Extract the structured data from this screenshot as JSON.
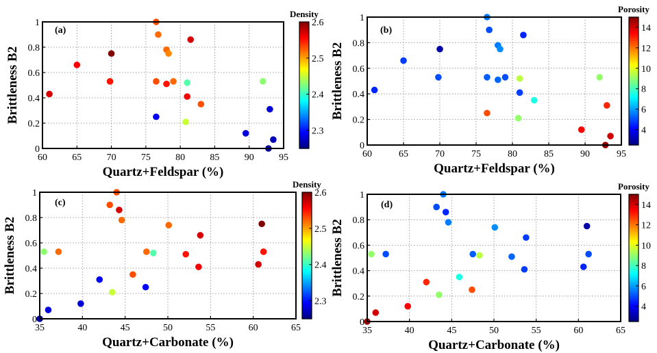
{
  "chart_data": [
    {
      "type": "scatter",
      "panel_label": "(a)",
      "xlabel": "Quartz+Feldspar (%)",
      "ylabel": "Brittleness B2",
      "xlim": [
        60,
        95
      ],
      "ylim": [
        0,
        1
      ],
      "xticks": [
        60,
        65,
        70,
        75,
        80,
        85,
        90,
        95
      ],
      "yticks": [
        0,
        0.2,
        0.4,
        0.6,
        0.8,
        1
      ],
      "grid": true,
      "colorbar": {
        "title": "Density",
        "range": [
          2.25,
          2.6
        ],
        "ticks": [
          2.3,
          2.4,
          2.5,
          2.6
        ]
      },
      "points": [
        {
          "x": 61.0,
          "y": 0.43,
          "c": 2.57
        },
        {
          "x": 65.0,
          "y": 0.66,
          "c": 2.56
        },
        {
          "x": 69.8,
          "y": 0.53,
          "c": 2.55
        },
        {
          "x": 70.0,
          "y": 0.75,
          "c": 2.6
        },
        {
          "x": 76.5,
          "y": 1.0,
          "c": 2.53
        },
        {
          "x": 76.8,
          "y": 0.9,
          "c": 2.52
        },
        {
          "x": 76.5,
          "y": 0.53,
          "c": 2.53
        },
        {
          "x": 78.0,
          "y": 0.78,
          "c": 2.52
        },
        {
          "x": 78.3,
          "y": 0.75,
          "c": 2.51
        },
        {
          "x": 78.0,
          "y": 0.51,
          "c": 2.55
        },
        {
          "x": 79.0,
          "y": 0.53,
          "c": 2.52
        },
        {
          "x": 81.5,
          "y": 0.86,
          "c": 2.57
        },
        {
          "x": 81.0,
          "y": 0.41,
          "c": 2.56
        },
        {
          "x": 81.0,
          "y": 0.52,
          "c": 2.41
        },
        {
          "x": 80.8,
          "y": 0.21,
          "c": 2.45
        },
        {
          "x": 76.5,
          "y": 0.25,
          "c": 2.29
        },
        {
          "x": 83.0,
          "y": 0.35,
          "c": 2.53
        },
        {
          "x": 92.0,
          "y": 0.53,
          "c": 2.43
        },
        {
          "x": 89.5,
          "y": 0.12,
          "c": 2.28
        },
        {
          "x": 93.0,
          "y": 0.31,
          "c": 2.28
        },
        {
          "x": 92.8,
          "y": 0.0,
          "c": 2.26
        },
        {
          "x": 93.5,
          "y": 0.07,
          "c": 2.27
        }
      ]
    },
    {
      "type": "scatter",
      "panel_label": "(b)",
      "xlabel": "Quartz+Feldspar (%)",
      "ylabel": "Brittleness B2",
      "xlim": [
        60,
        95
      ],
      "ylim": [
        0,
        1
      ],
      "xticks": [
        60,
        65,
        70,
        75,
        80,
        85,
        90,
        95
      ],
      "yticks": [
        0,
        0.2,
        0.4,
        0.6,
        0.8,
        1
      ],
      "grid": true,
      "colorbar": {
        "title": "Porosity",
        "range": [
          2.5,
          15
        ],
        "ticks": [
          4,
          6,
          8,
          10,
          12,
          14
        ]
      },
      "points": [
        {
          "x": 61.0,
          "y": 0.43,
          "c": 4.5
        },
        {
          "x": 65.0,
          "y": 0.66,
          "c": 4.8
        },
        {
          "x": 69.8,
          "y": 0.53,
          "c": 5.0
        },
        {
          "x": 70.0,
          "y": 0.75,
          "c": 3.0
        },
        {
          "x": 76.5,
          "y": 1.0,
          "c": 5.5
        },
        {
          "x": 76.8,
          "y": 0.9,
          "c": 5.0
        },
        {
          "x": 76.5,
          "y": 0.53,
          "c": 5.2
        },
        {
          "x": 78.0,
          "y": 0.78,
          "c": 5.6
        },
        {
          "x": 78.3,
          "y": 0.75,
          "c": 5.8
        },
        {
          "x": 78.0,
          "y": 0.51,
          "c": 5.3
        },
        {
          "x": 79.0,
          "y": 0.53,
          "c": 5.0
        },
        {
          "x": 81.5,
          "y": 0.86,
          "c": 4.5
        },
        {
          "x": 81.0,
          "y": 0.41,
          "c": 4.8
        },
        {
          "x": 81.0,
          "y": 0.52,
          "c": 9.5
        },
        {
          "x": 80.8,
          "y": 0.21,
          "c": 9.0
        },
        {
          "x": 76.5,
          "y": 0.25,
          "c": 12.5
        },
        {
          "x": 83.0,
          "y": 0.35,
          "c": 7.5
        },
        {
          "x": 92.0,
          "y": 0.53,
          "c": 9.0
        },
        {
          "x": 89.5,
          "y": 0.12,
          "c": 13.5
        },
        {
          "x": 93.0,
          "y": 0.31,
          "c": 13.0
        },
        {
          "x": 92.8,
          "y": 0.0,
          "c": 14.8
        },
        {
          "x": 93.5,
          "y": 0.07,
          "c": 14.0
        }
      ]
    },
    {
      "type": "scatter",
      "panel_label": "(c)",
      "xlabel": "Quartz+Carbonate (%)",
      "ylabel": "Brittleness B2",
      "xlim": [
        35,
        65
      ],
      "ylim": [
        0,
        1
      ],
      "xticks": [
        35,
        40,
        45,
        50,
        55,
        60,
        65
      ],
      "yticks": [
        0,
        0.2,
        0.4,
        0.6,
        0.8,
        1
      ],
      "grid": true,
      "colorbar": {
        "title": "Density",
        "range": [
          2.25,
          2.6
        ],
        "ticks": [
          2.3,
          2.4,
          2.5,
          2.6
        ]
      },
      "points": [
        {
          "x": 35.0,
          "y": 0.0,
          "c": 2.26
        },
        {
          "x": 36.0,
          "y": 0.07,
          "c": 2.28
        },
        {
          "x": 39.8,
          "y": 0.12,
          "c": 2.28
        },
        {
          "x": 35.5,
          "y": 0.53,
          "c": 2.43
        },
        {
          "x": 37.2,
          "y": 0.53,
          "c": 2.52
        },
        {
          "x": 42.0,
          "y": 0.31,
          "c": 2.29
        },
        {
          "x": 43.5,
          "y": 0.21,
          "c": 2.45
        },
        {
          "x": 43.2,
          "y": 0.9,
          "c": 2.53
        },
        {
          "x": 44.0,
          "y": 1.0,
          "c": 2.53
        },
        {
          "x": 44.3,
          "y": 0.86,
          "c": 2.57
        },
        {
          "x": 44.6,
          "y": 0.78,
          "c": 2.52
        },
        {
          "x": 45.9,
          "y": 0.35,
          "c": 2.53
        },
        {
          "x": 47.4,
          "y": 0.25,
          "c": 2.29
        },
        {
          "x": 47.5,
          "y": 0.53,
          "c": 2.52
        },
        {
          "x": 48.3,
          "y": 0.52,
          "c": 2.41
        },
        {
          "x": 50.1,
          "y": 0.74,
          "c": 2.52
        },
        {
          "x": 52.1,
          "y": 0.51,
          "c": 2.55
        },
        {
          "x": 53.6,
          "y": 0.41,
          "c": 2.56
        },
        {
          "x": 53.8,
          "y": 0.66,
          "c": 2.57
        },
        {
          "x": 60.6,
          "y": 0.43,
          "c": 2.57
        },
        {
          "x": 61.0,
          "y": 0.75,
          "c": 2.6
        },
        {
          "x": 61.2,
          "y": 0.53,
          "c": 2.55
        }
      ]
    },
    {
      "type": "scatter",
      "panel_label": "(d)",
      "xlabel": "Quartz+Carbonate (%)",
      "ylabel": "Brittleness B2",
      "xlim": [
        35,
        65
      ],
      "ylim": [
        0,
        1
      ],
      "xticks": [
        35,
        40,
        45,
        50,
        55,
        60,
        65
      ],
      "yticks": [
        0,
        0.2,
        0.4,
        0.6,
        0.8,
        1
      ],
      "grid": true,
      "colorbar": {
        "title": "Porosity",
        "range": [
          2.5,
          15
        ],
        "ticks": [
          4,
          6,
          8,
          10,
          12,
          14
        ]
      },
      "points": [
        {
          "x": 35.0,
          "y": 0.0,
          "c": 14.8
        },
        {
          "x": 36.0,
          "y": 0.07,
          "c": 14.0
        },
        {
          "x": 39.8,
          "y": 0.12,
          "c": 13.5
        },
        {
          "x": 35.5,
          "y": 0.53,
          "c": 9.0
        },
        {
          "x": 37.2,
          "y": 0.53,
          "c": 5.0
        },
        {
          "x": 42.0,
          "y": 0.31,
          "c": 13.0
        },
        {
          "x": 43.5,
          "y": 0.21,
          "c": 9.0
        },
        {
          "x": 43.2,
          "y": 0.9,
          "c": 5.0
        },
        {
          "x": 44.0,
          "y": 1.0,
          "c": 5.5
        },
        {
          "x": 44.3,
          "y": 0.86,
          "c": 4.5
        },
        {
          "x": 44.6,
          "y": 0.78,
          "c": 5.6
        },
        {
          "x": 45.9,
          "y": 0.35,
          "c": 7.5
        },
        {
          "x": 47.4,
          "y": 0.25,
          "c": 12.5
        },
        {
          "x": 47.5,
          "y": 0.53,
          "c": 5.2
        },
        {
          "x": 48.3,
          "y": 0.52,
          "c": 9.5
        },
        {
          "x": 50.1,
          "y": 0.74,
          "c": 5.8
        },
        {
          "x": 52.1,
          "y": 0.51,
          "c": 5.3
        },
        {
          "x": 53.6,
          "y": 0.41,
          "c": 4.8
        },
        {
          "x": 53.8,
          "y": 0.66,
          "c": 4.8
        },
        {
          "x": 60.6,
          "y": 0.43,
          "c": 4.5
        },
        {
          "x": 61.0,
          "y": 0.75,
          "c": 3.0
        },
        {
          "x": 61.2,
          "y": 0.53,
          "c": 5.0
        }
      ]
    }
  ],
  "colormap": "jet"
}
